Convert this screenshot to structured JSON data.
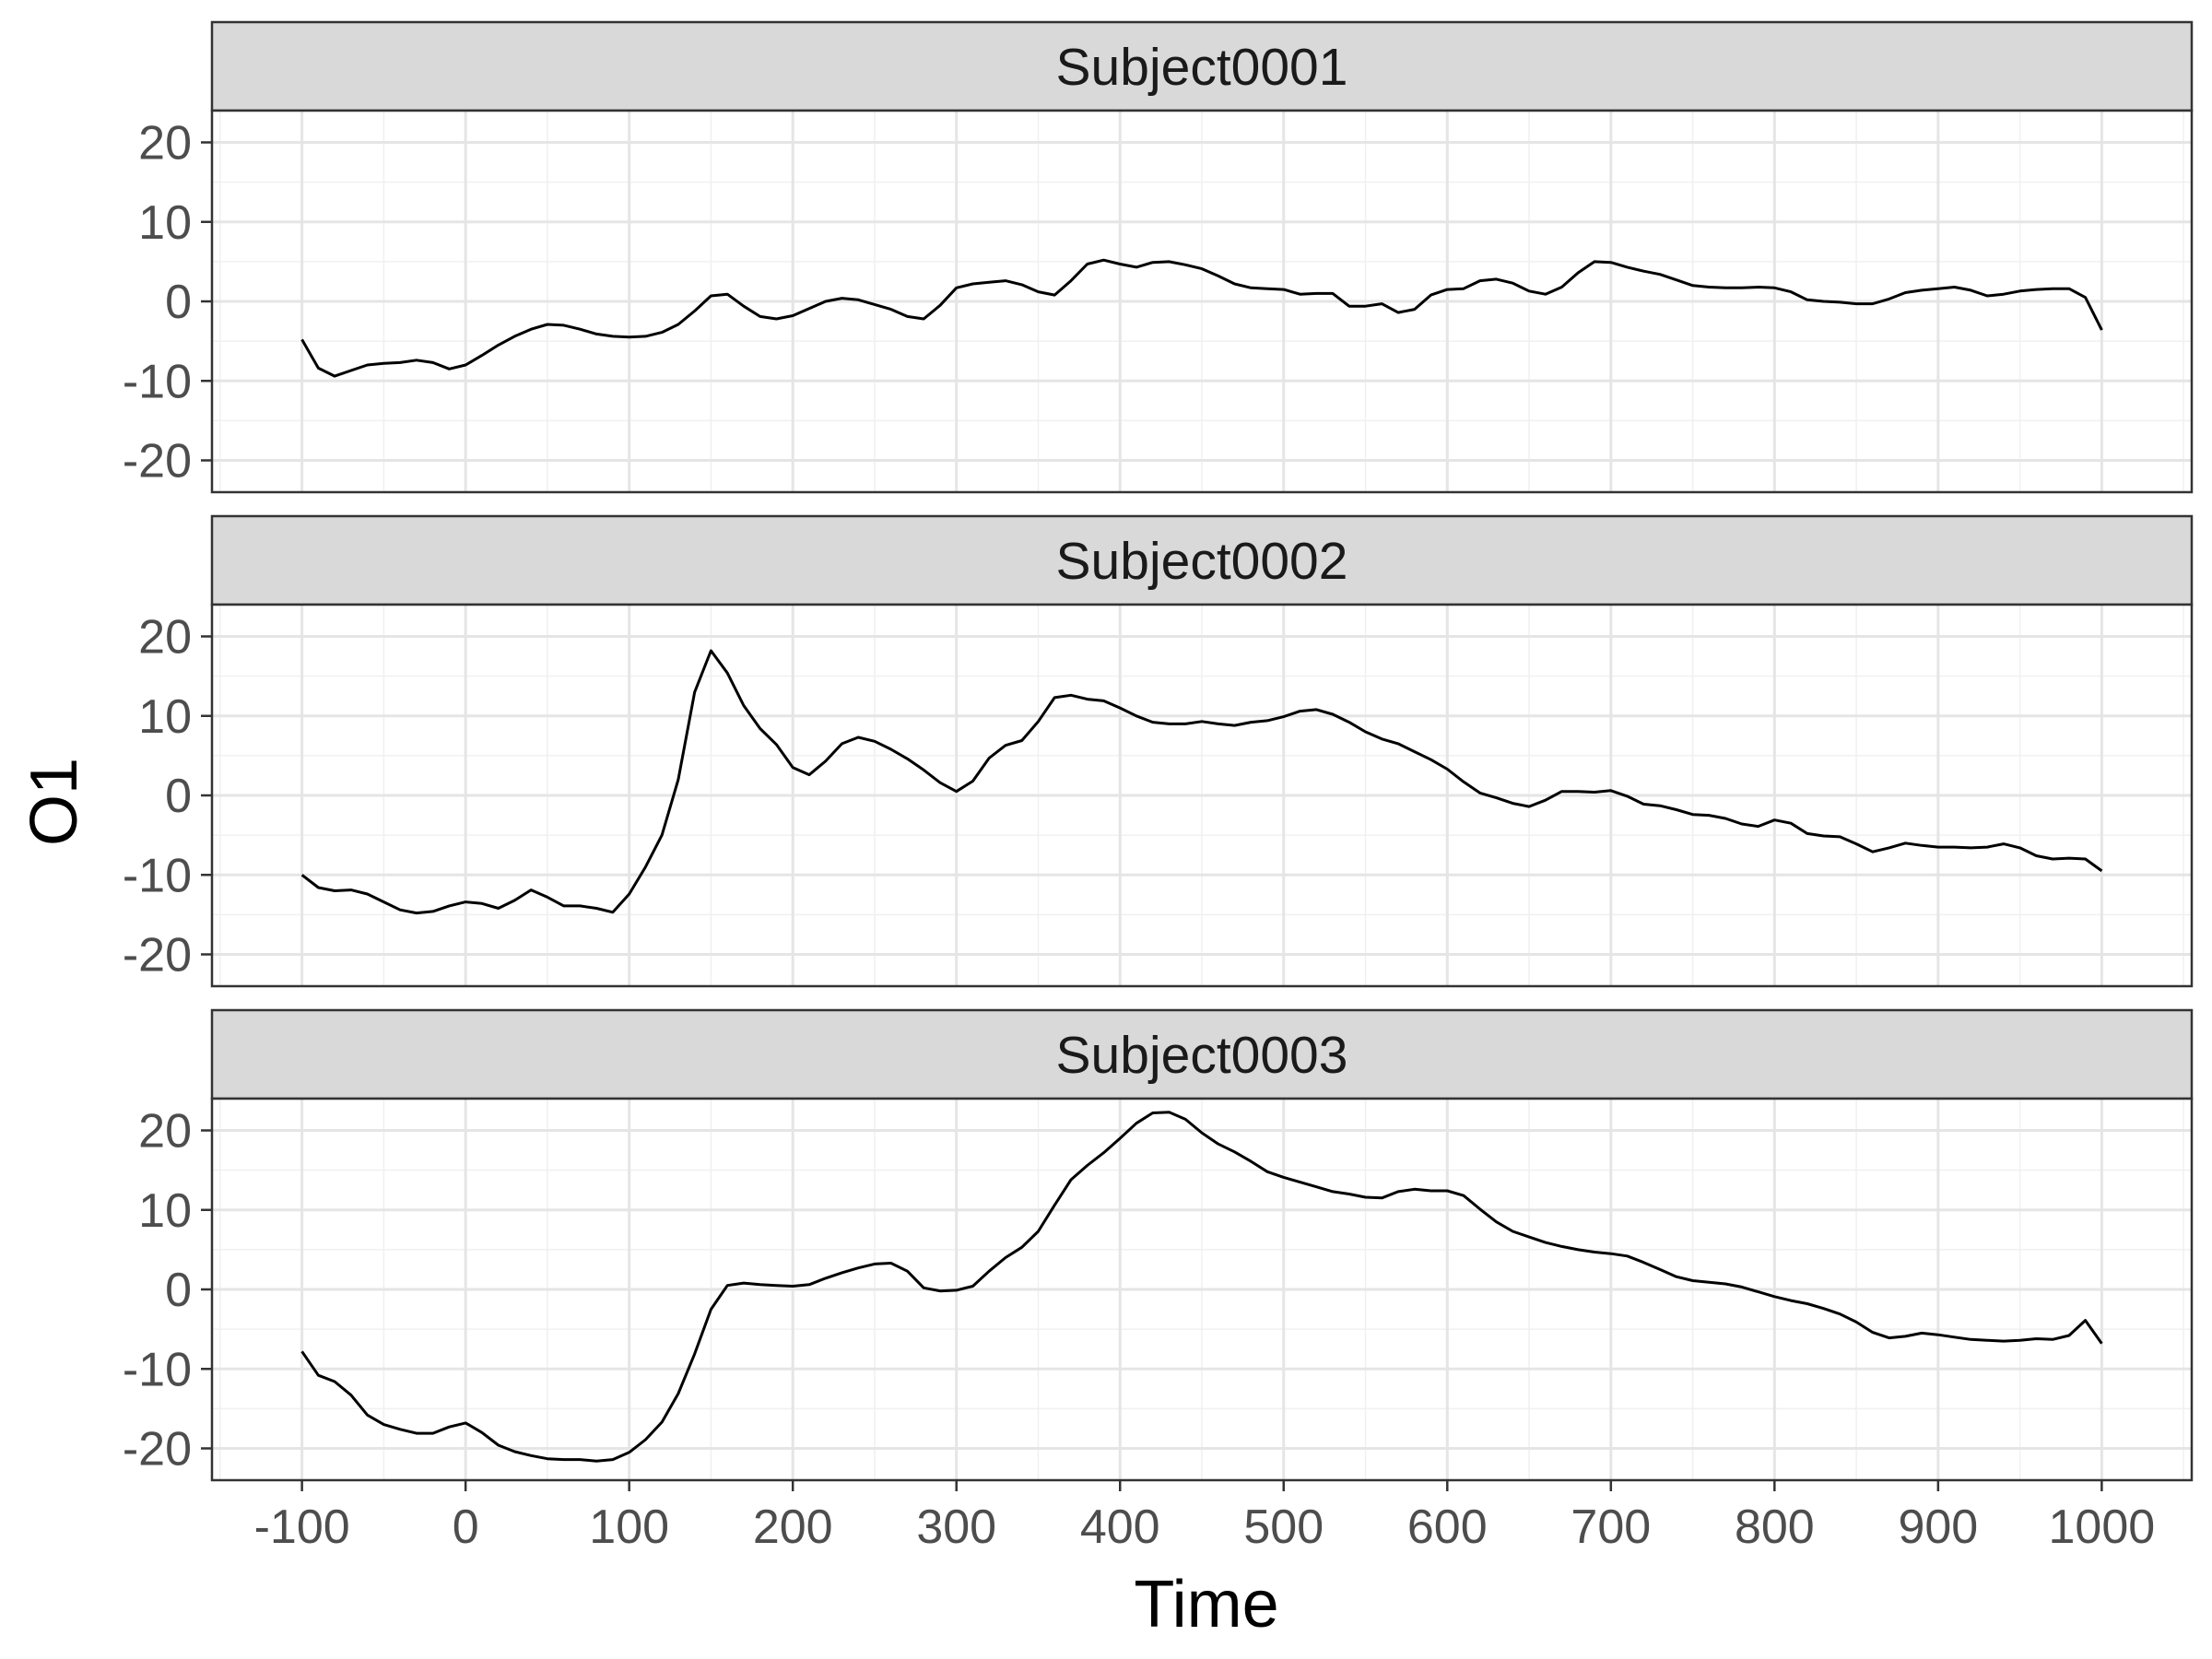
{
  "chart_data": {
    "type": "line",
    "facet_layout": "vertical, shared x-axis",
    "xlabel": "Time",
    "ylabel": "O1",
    "xlim": [
      -155,
      1055
    ],
    "ylim": [
      -24,
      24
    ],
    "x_ticks": [
      -100,
      0,
      100,
      200,
      300,
      400,
      500,
      600,
      700,
      800,
      900,
      1000
    ],
    "y_ticks": [
      -20,
      -10,
      0,
      10,
      20
    ],
    "grid": true,
    "line_color": "#000000",
    "panels": [
      {
        "label": "Subject0001",
        "x": [
          -100,
          -90,
          -80,
          -70,
          -60,
          -50,
          -40,
          -30,
          -20,
          -10,
          0,
          10,
          20,
          30,
          40,
          50,
          60,
          70,
          80,
          90,
          100,
          110,
          120,
          130,
          140,
          150,
          160,
          170,
          180,
          190,
          200,
          210,
          220,
          230,
          240,
          250,
          260,
          270,
          280,
          290,
          300,
          310,
          320,
          330,
          340,
          350,
          360,
          370,
          380,
          390,
          400,
          410,
          420,
          430,
          440,
          450,
          460,
          470,
          480,
          490,
          500,
          510,
          520,
          530,
          540,
          550,
          560,
          570,
          580,
          590,
          600,
          610,
          620,
          630,
          640,
          650,
          660,
          670,
          680,
          690,
          700,
          710,
          720,
          730,
          740,
          750,
          760,
          770,
          780,
          790,
          800,
          810,
          820,
          830,
          840,
          850,
          860,
          870,
          880,
          890,
          900,
          910,
          920,
          930,
          940,
          950,
          960,
          970,
          980,
          990,
          1000
        ],
        "y": [
          -4.8,
          -8.4,
          -9.4,
          -8.7,
          -8.0,
          -7.8,
          -7.7,
          -7.4,
          -7.7,
          -8.5,
          -8.0,
          -6.8,
          -5.5,
          -4.4,
          -3.5,
          -2.9,
          -3.0,
          -3.5,
          -4.1,
          -4.4,
          -4.5,
          -4.4,
          -3.9,
          -2.9,
          -1.2,
          0.7,
          0.9,
          -0.6,
          -1.9,
          -2.2,
          -1.8,
          -0.9,
          0.0,
          0.4,
          0.2,
          -0.4,
          -1.0,
          -1.9,
          -2.2,
          -0.5,
          1.7,
          2.2,
          2.4,
          2.6,
          2.1,
          1.2,
          0.8,
          2.6,
          4.7,
          5.2,
          4.7,
          4.3,
          4.9,
          5.0,
          4.6,
          4.1,
          3.2,
          2.2,
          1.7,
          1.6,
          1.5,
          0.9,
          1.0,
          1.0,
          -0.6,
          -0.6,
          -0.3,
          -1.4,
          -1.0,
          0.8,
          1.5,
          1.6,
          2.6,
          2.8,
          2.3,
          1.3,
          0.9,
          1.8,
          3.6,
          5.0,
          4.9,
          4.3,
          3.8,
          3.4,
          2.7,
          2.0,
          1.8,
          1.7,
          1.7,
          1.8,
          1.7,
          1.2,
          0.2,
          0.0,
          -0.1,
          -0.3,
          -0.3,
          0.3,
          1.1,
          1.4,
          1.6,
          1.8,
          1.4,
          0.7,
          0.9,
          1.3,
          1.5,
          1.6,
          1.6,
          0.5,
          -3.6
        ]
      },
      {
        "label": "Subject0002",
        "x": [
          -100,
          -90,
          -80,
          -70,
          -60,
          -50,
          -40,
          -30,
          -20,
          -10,
          0,
          10,
          20,
          30,
          40,
          50,
          60,
          70,
          80,
          90,
          100,
          110,
          120,
          130,
          140,
          150,
          160,
          170,
          180,
          190,
          200,
          210,
          220,
          230,
          240,
          250,
          260,
          270,
          280,
          290,
          300,
          310,
          320,
          330,
          340,
          350,
          360,
          370,
          380,
          390,
          400,
          410,
          420,
          430,
          440,
          450,
          460,
          470,
          480,
          490,
          500,
          510,
          520,
          530,
          540,
          550,
          560,
          570,
          580,
          590,
          600,
          610,
          620,
          630,
          640,
          650,
          660,
          670,
          680,
          690,
          700,
          710,
          720,
          730,
          740,
          750,
          760,
          770,
          780,
          790,
          800,
          810,
          820,
          830,
          840,
          850,
          860,
          870,
          880,
          890,
          900,
          910,
          920,
          930,
          940,
          950,
          960,
          970,
          980,
          990,
          1000
        ],
        "y": [
          -10.0,
          -11.6,
          -12.0,
          -11.9,
          -12.4,
          -13.4,
          -14.4,
          -14.8,
          -14.6,
          -13.9,
          -13.4,
          -13.6,
          -14.2,
          -13.2,
          -11.9,
          -12.8,
          -13.9,
          -13.9,
          -14.2,
          -14.7,
          -12.4,
          -9.0,
          -5.0,
          2.0,
          13.0,
          18.2,
          15.4,
          11.3,
          8.4,
          6.4,
          3.5,
          2.6,
          4.3,
          6.5,
          7.3,
          6.8,
          5.8,
          4.6,
          3.2,
          1.6,
          0.5,
          1.8,
          4.7,
          6.3,
          6.9,
          9.3,
          12.3,
          12.6,
          12.1,
          11.9,
          11.0,
          10.0,
          9.2,
          9.0,
          9.0,
          9.3,
          9.0,
          8.8,
          9.2,
          9.4,
          9.9,
          10.6,
          10.8,
          10.2,
          9.2,
          8.0,
          7.1,
          6.5,
          5.5,
          4.5,
          3.3,
          1.7,
          0.3,
          -0.3,
          -1.0,
          -1.4,
          -0.6,
          0.5,
          0.5,
          0.4,
          0.6,
          -0.1,
          -1.1,
          -1.3,
          -1.8,
          -2.4,
          -2.5,
          -2.9,
          -3.6,
          -3.9,
          -3.1,
          -3.5,
          -4.8,
          -5.1,
          -5.2,
          -6.1,
          -7.1,
          -6.6,
          -6.0,
          -6.3,
          -6.5,
          -6.5,
          -6.6,
          -6.5,
          -6.1,
          -6.6,
          -7.6,
          -8.0,
          -7.9,
          -8.0,
          -9.5
        ]
      },
      {
        "label": "Subject0003",
        "x": [
          -100,
          -90,
          -80,
          -70,
          -60,
          -50,
          -40,
          -30,
          -20,
          -10,
          0,
          10,
          20,
          30,
          40,
          50,
          60,
          70,
          80,
          90,
          100,
          110,
          120,
          130,
          140,
          150,
          160,
          170,
          180,
          190,
          200,
          210,
          220,
          230,
          240,
          250,
          260,
          270,
          280,
          290,
          300,
          310,
          320,
          330,
          340,
          350,
          360,
          370,
          380,
          390,
          400,
          410,
          420,
          430,
          440,
          450,
          460,
          470,
          480,
          490,
          500,
          510,
          520,
          530,
          540,
          550,
          560,
          570,
          580,
          590,
          600,
          610,
          620,
          630,
          640,
          650,
          660,
          670,
          680,
          690,
          700,
          710,
          720,
          730,
          740,
          750,
          760,
          770,
          780,
          790,
          800,
          810,
          820,
          830,
          840,
          850,
          860,
          870,
          880,
          890,
          900,
          910,
          920,
          930,
          940,
          950,
          960,
          970,
          980,
          990,
          1000
        ],
        "y": [
          -7.8,
          -10.8,
          -11.6,
          -13.3,
          -15.8,
          -17.0,
          -17.6,
          -18.1,
          -18.1,
          -17.3,
          -16.8,
          -18.0,
          -19.6,
          -20.4,
          -20.9,
          -21.3,
          -21.4,
          -21.4,
          -21.6,
          -21.4,
          -20.5,
          -18.9,
          -16.7,
          -13.1,
          -8.1,
          -2.5,
          0.5,
          0.8,
          0.6,
          0.5,
          0.4,
          0.6,
          1.4,
          2.1,
          2.7,
          3.2,
          3.3,
          2.3,
          0.2,
          -0.2,
          -0.1,
          0.4,
          2.3,
          4.0,
          5.3,
          7.3,
          10.6,
          13.8,
          15.6,
          17.2,
          19.0,
          20.9,
          22.2,
          22.3,
          21.4,
          19.7,
          18.3,
          17.3,
          16.1,
          14.8,
          14.1,
          13.5,
          12.9,
          12.3,
          12.0,
          11.6,
          11.5,
          12.3,
          12.6,
          12.4,
          12.4,
          11.8,
          10.1,
          8.5,
          7.3,
          6.6,
          5.9,
          5.4,
          5.0,
          4.7,
          4.5,
          4.2,
          3.4,
          2.5,
          1.6,
          1.1,
          0.9,
          0.7,
          0.3,
          -0.3,
          -0.9,
          -1.4,
          -1.8,
          -2.4,
          -3.1,
          -4.1,
          -5.4,
          -6.1,
          -5.9,
          -5.5,
          -5.7,
          -6.0,
          -6.3,
          -6.4,
          -6.5,
          -6.4,
          -6.2,
          -6.3,
          -5.8,
          -3.9,
          -6.8
        ]
      }
    ]
  }
}
